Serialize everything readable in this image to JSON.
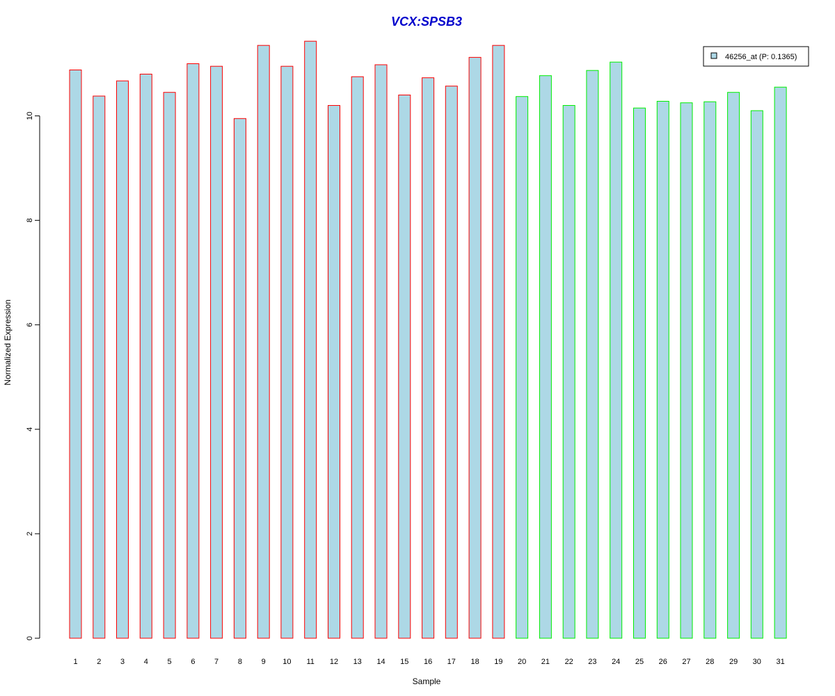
{
  "chart_data": {
    "type": "bar",
    "title": "VCX:SPSB3",
    "xlabel": "Sample",
    "ylabel": "Normalized Expression",
    "ylim": [
      0,
      11.5
    ],
    "yticks": [
      0,
      2,
      4,
      6,
      8,
      10
    ],
    "categories": [
      "1",
      "2",
      "3",
      "4",
      "5",
      "6",
      "7",
      "8",
      "9",
      "10",
      "11",
      "12",
      "13",
      "14",
      "15",
      "16",
      "17",
      "18",
      "19",
      "20",
      "21",
      "22",
      "23",
      "24",
      "25",
      "26",
      "27",
      "28",
      "29",
      "30",
      "31"
    ],
    "values": [
      10.88,
      10.38,
      10.67,
      10.8,
      10.45,
      11.0,
      10.95,
      9.95,
      11.35,
      10.95,
      11.43,
      10.2,
      10.75,
      10.98,
      10.4,
      10.73,
      10.57,
      11.12,
      11.35,
      10.37,
      10.77,
      10.2,
      10.87,
      11.03,
      10.15,
      10.28,
      10.25,
      10.27,
      10.45,
      10.1,
      10.55
    ],
    "groups": [
      "red",
      "red",
      "red",
      "red",
      "red",
      "red",
      "red",
      "red",
      "red",
      "red",
      "red",
      "red",
      "red",
      "red",
      "red",
      "red",
      "red",
      "red",
      "red",
      "green",
      "green",
      "green",
      "green",
      "green",
      "green",
      "green",
      "green",
      "green",
      "green",
      "green",
      "green"
    ],
    "series": [
      {
        "name": "46256_at (P: 0.1365)"
      }
    ],
    "legend_position": "top-right",
    "grid": false,
    "colors": {
      "bar_fill": "#add8e6",
      "group_red": "#ff0000",
      "group_green": "#00ee00",
      "title": "#0000cc"
    }
  }
}
